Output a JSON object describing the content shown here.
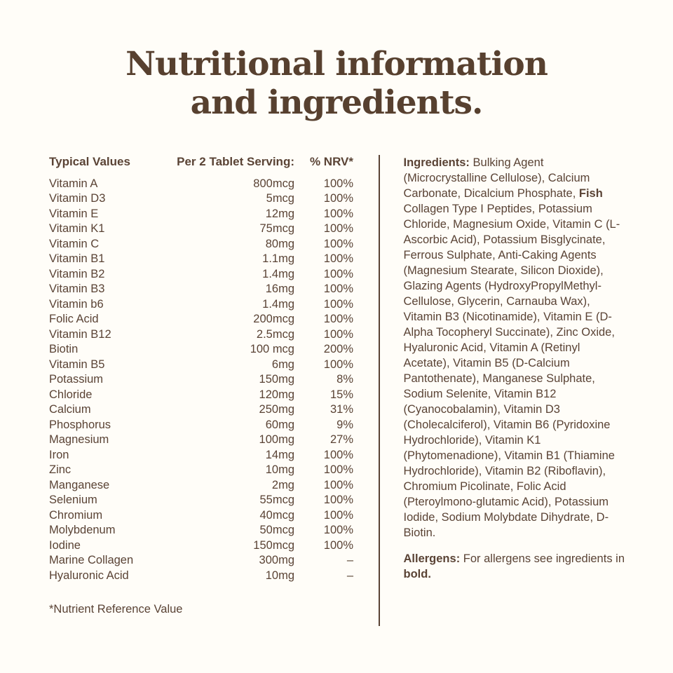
{
  "colors": {
    "background": "#fffdf8",
    "text": "#5a4335",
    "heading": "#57402f"
  },
  "heading": {
    "line1": "Nutritional information",
    "line2": "and ingredients."
  },
  "table": {
    "headers": {
      "name": "Typical Values",
      "serving": "Per 2 Tablet Serving:",
      "nrv": "% NRV*"
    },
    "rows": [
      {
        "name": "Vitamin A",
        "amount": "800mcg",
        "nrv": "100%"
      },
      {
        "name": "Vitamin D3",
        "amount": "5mcg",
        "nrv": "100%"
      },
      {
        "name": "Vitamin E",
        "amount": "12mg",
        "nrv": "100%"
      },
      {
        "name": "Vitamin K1",
        "amount": "75mcg",
        "nrv": "100%"
      },
      {
        "name": "Vitamin C",
        "amount": "80mg",
        "nrv": "100%"
      },
      {
        "name": "Vitamin B1",
        "amount": "1.1mg",
        "nrv": "100%"
      },
      {
        "name": "Vitamin B2",
        "amount": "1.4mg",
        "nrv": "100%"
      },
      {
        "name": "Vitamin B3",
        "amount": "16mg",
        "nrv": "100%"
      },
      {
        "name": "Vitamin b6",
        "amount": "1.4mg",
        "nrv": "100%"
      },
      {
        "name": "Folic Acid",
        "amount": "200mcg",
        "nrv": "100%"
      },
      {
        "name": "Vitamin B12",
        "amount": "2.5mcg",
        "nrv": "100%"
      },
      {
        "name": "Biotin",
        "amount": "100 mcg",
        "nrv": "200%"
      },
      {
        "name": "Vitamin B5",
        "amount": "6mg",
        "nrv": "100%"
      },
      {
        "name": "Potassium",
        "amount": "150mg",
        "nrv": "8%"
      },
      {
        "name": "Chloride",
        "amount": "120mg",
        "nrv": "15%"
      },
      {
        "name": "Calcium",
        "amount": "250mg",
        "nrv": "31%"
      },
      {
        "name": "Phosphorus",
        "amount": "60mg",
        "nrv": "9%"
      },
      {
        "name": "Magnesium",
        "amount": "100mg",
        "nrv": "27%"
      },
      {
        "name": "Iron",
        "amount": "14mg",
        "nrv": "100%"
      },
      {
        "name": "Zinc",
        "amount": "10mg",
        "nrv": "100%"
      },
      {
        "name": "Manganese",
        "amount": "2mg",
        "nrv": "100%"
      },
      {
        "name": "Selenium",
        "amount": "55mcg",
        "nrv": "100%"
      },
      {
        "name": "Chromium",
        "amount": "40mcg",
        "nrv": "100%"
      },
      {
        "name": "Molybdenum",
        "amount": "50mcg",
        "nrv": "100%"
      },
      {
        "name": "Iodine",
        "amount": "150mcg",
        "nrv": "100%"
      },
      {
        "name": "Marine Collagen",
        "amount": "300mg",
        "nrv": "–"
      },
      {
        "name": "Hyaluronic Acid",
        "amount": "10mg",
        "nrv": "–"
      }
    ],
    "footnote": "*Nutrient Reference Value"
  },
  "ingredients": {
    "segments": [
      {
        "text": "Ingredients: ",
        "bold": true
      },
      {
        "text": "Bulking Agent (Microcrystalline Cellulose), Calcium Carbonate, Dicalcium Phosphate, ",
        "bold": false
      },
      {
        "text": "Fish",
        "bold": true
      },
      {
        "text": " Collagen Type I Peptides, Potassium Chloride, Magnesium Oxide, Vitamin C (L-Ascorbic Acid), Potassium Bisglycinate, Ferrous Sulphate, Anti-Caking Agents (Magnesium Stearate, Silicon Dioxide), Glazing Agents (HydroxyPropylMethyl-Cellulose, Glycerin, Carnauba Wax), Vitamin B3 (Nicotinamide), Vitamin E (D-Alpha Tocopheryl Succinate), Zinc Oxide, Hyaluronic Acid, Vitamin A (Retinyl Acetate), Vitamin B5 (D-Calcium Pantothenate), Manganese Sulphate, Sodium Selenite, Vitamin B12 (Cyanocobalamin), Vitamin D3 (Cholecalciferol), Vitamin B6 (Pyridoxine Hydrochloride), Vitamin K1 (Phytomenadione), Vitamin B1 (Thiamine Hydrochloride), Vitamin B2 (Riboflavin), Chromium Picolinate, Folic Acid (Pteroylmono-glutamic Acid), Potassium Iodide, Sodium Molybdate Dihydrate, D-Biotin.",
        "bold": false
      }
    ]
  },
  "allergens": {
    "segments": [
      {
        "text": "Allergens: ",
        "bold": true
      },
      {
        "text": "For allergens see ingredients in ",
        "bold": false
      },
      {
        "text": "bold.",
        "bold": true
      }
    ]
  }
}
